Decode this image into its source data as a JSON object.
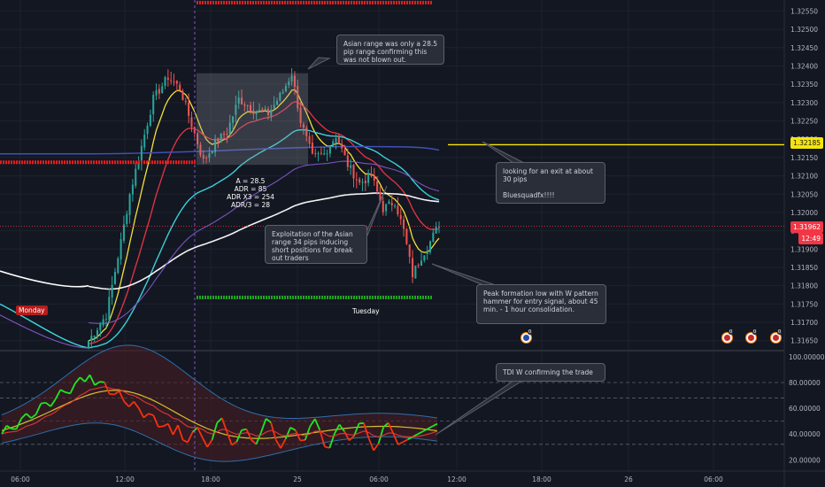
{
  "chart_data": {
    "type": "candlestick",
    "price_axis": {
      "ticks": [
        "1.32550",
        "1.32500",
        "1.32450",
        "1.32400",
        "1.32350",
        "1.32300",
        "1.32250",
        "1.32200",
        "1.32150",
        "1.32100",
        "1.32050",
        "1.32000",
        "1.31950",
        "1.31900",
        "1.31850",
        "1.31800",
        "1.31750",
        "1.31700",
        "1.31650"
      ],
      "range": [
        1.3163,
        1.3258
      ]
    },
    "time_axis": {
      "ticks": [
        "06:00",
        "12:00",
        "18:00",
        "25",
        "06:00",
        "12:00",
        "18:00",
        "26",
        "06:00"
      ]
    },
    "price_tags": {
      "target": "1.32185",
      "current": "1.31962",
      "countdown": "12:49"
    },
    "session_labels": {
      "monday": "Monday",
      "tuesday": "Tuesday"
    },
    "indicator": {
      "name": "TDI",
      "ticks": [
        "100.00000",
        "80.00000",
        "60.00000",
        "40.00000",
        "20.00000"
      ],
      "range": [
        14,
        102
      ],
      "levels": [
        80,
        68,
        50,
        32
      ]
    },
    "adr_stats": [
      "A = 28.5",
      "ADR = 85",
      "ADR X3 = 254",
      "ADR/3 = 28"
    ],
    "annotations": [
      {
        "id": "asian-range",
        "text": "Asian range was only a 28.5 pip range confirming this was not blown out."
      },
      {
        "id": "exit",
        "line1": "looking for an exit at about 30 pips",
        "line2": "Bluesquadfx!!!!"
      },
      {
        "id": "exploitation",
        "text": "Exploitation of the Asian range 34 pips inducing short positions for break out traders"
      },
      {
        "id": "peak-formation",
        "text": "Peak formation low with W pattern hammer for entry signal, about 45 min. - 1 hour consolidation."
      },
      {
        "id": "tdi",
        "text": "TDI W confirming the trade"
      }
    ],
    "event_badges": [
      "0",
      "0",
      "0",
      "0"
    ],
    "colors": {
      "background": "#131722",
      "up": "#26a69a",
      "down": "#ef5350",
      "ema_fast": "#ffeb3b",
      "ema_mid": "#f23645",
      "ema_slow": "#3dd9e0",
      "sma_long": "#ffffff",
      "ma_blue": "#3f51b5",
      "ma_purple": "#7e57c2",
      "target_line": "#f5e50c",
      "rsi_green": "#22e622",
      "rsi_red": "#f43111",
      "signal_yellow": "#d6c02d"
    }
  }
}
